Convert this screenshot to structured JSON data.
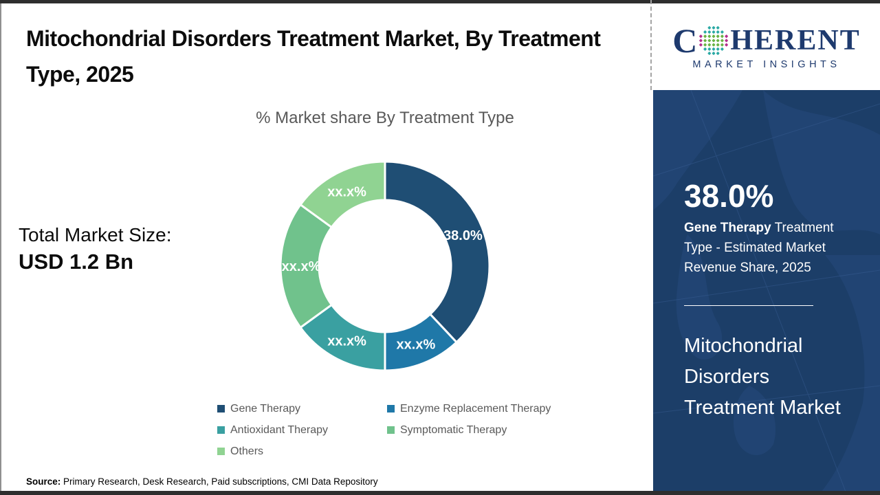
{
  "page": {
    "title": "Mitochondrial Disorders Treatment Market, By Treatment Type, 2025",
    "source_label": "Source:",
    "source_text": " Primary Research, Desk Research, Paid subscriptions, CMI Data Repository"
  },
  "total_market": {
    "label": "Total Market Size:",
    "value": "USD 1.2 Bn"
  },
  "logo": {
    "brand_c": "C",
    "brand_rest": "HERENT",
    "tagline": "MARKET INSIGHTS",
    "text_color": "#1e3a6e",
    "dot_colors": {
      "teal": "#2ba9a4",
      "green": "#6ab344",
      "magenta": "#b52e8d"
    }
  },
  "chart_data": {
    "type": "pie",
    "subtype": "donut",
    "title": "% Market share By Treatment Type",
    "series": [
      {
        "label": "Gene Therapy",
        "value": 38.0,
        "display": "38.0%",
        "color": "#1F4E74"
      },
      {
        "label": "Enzyme Replacement Therapy",
        "value": 12.0,
        "display": "xx.x%",
        "color": "#1F78A8"
      },
      {
        "label": "Antioxidant Therapy",
        "value": 15.0,
        "display": "xx.x%",
        "color": "#3AA0A1"
      },
      {
        "label": "Symptomatic Therapy",
        "value": 20.0,
        "display": "xx.x%",
        "color": "#70C28C"
      },
      {
        "label": "Others",
        "value": 15.0,
        "display": "xx.x%",
        "color": "#90D392"
      }
    ],
    "legend_position": "bottom",
    "label_color": "#ffffff"
  },
  "sidebar": {
    "bg_color": "#1c3e68",
    "stat_value": "38.0%",
    "stat_bold": "Gene Therapy",
    "stat_rest": " Treatment Type - Estimated Market Revenue Share, 2025",
    "market_title": "Mitochondrial Disorders Treatment Market"
  }
}
